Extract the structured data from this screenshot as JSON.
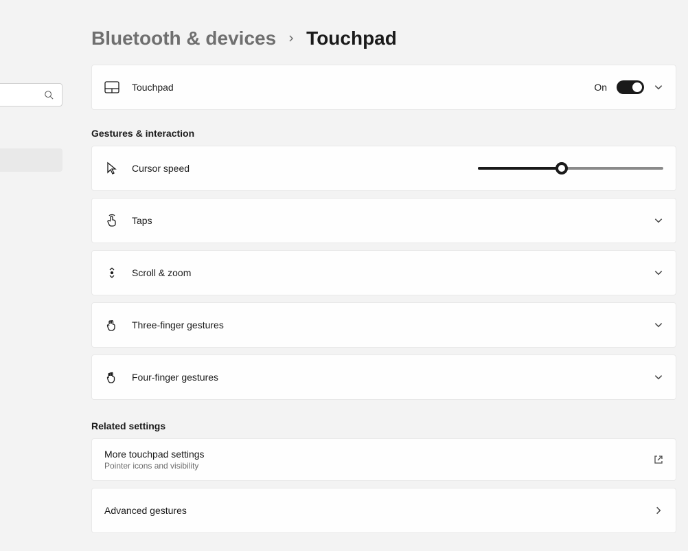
{
  "breadcrumb": {
    "parent": "Bluetooth & devices",
    "current": "Touchpad"
  },
  "touchpad_toggle": {
    "label": "Touchpad",
    "state_text": "On",
    "on": true
  },
  "sections": {
    "gestures_title": "Gestures & interaction",
    "related_title": "Related settings"
  },
  "cursor_speed": {
    "label": "Cursor speed",
    "value": 45,
    "min": 0,
    "max": 100,
    "track_color": "#8a8a8a",
    "fill_color": "#1a1a1a"
  },
  "rows": {
    "taps": "Taps",
    "scroll_zoom": "Scroll & zoom",
    "three_finger": "Three-finger gestures",
    "four_finger": "Four-finger gestures"
  },
  "related": {
    "more": {
      "title": "More touchpad settings",
      "subtitle": "Pointer icons and visibility"
    },
    "advanced": {
      "title": "Advanced gestures"
    }
  },
  "colors": {
    "page_bg": "#f3f3f3",
    "card_bg": "#fefefe",
    "card_border": "#e8e8e8",
    "text_primary": "#1a1a1a",
    "text_muted": "#6f6f6f",
    "text_subtle": "#6b6b6b"
  }
}
